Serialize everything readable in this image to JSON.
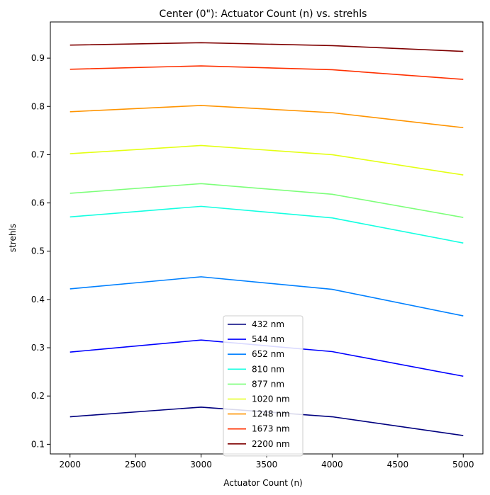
{
  "chart_data": {
    "type": "line",
    "title": "Center (0\"): Actuator Count (n) vs. strehls",
    "xlabel": "Actuator Count (n)",
    "ylabel": "strehls",
    "x": [
      2000,
      3000,
      4000,
      5000
    ],
    "xlim": [
      1850,
      5150
    ],
    "ylim": [
      0.08,
      0.975
    ],
    "xticks": [
      2000,
      2500,
      3000,
      3500,
      4000,
      4500,
      5000
    ],
    "yticks": [
      0.1,
      0.2,
      0.3,
      0.4,
      0.5,
      0.6,
      0.7,
      0.8,
      0.9
    ],
    "grid": false,
    "legend_position": "lower-center",
    "series": [
      {
        "name": "432 nm",
        "color": "#00007f",
        "values": [
          0.157,
          0.177,
          0.157,
          0.118
        ]
      },
      {
        "name": "544 nm",
        "color": "#0000ff",
        "values": [
          0.291,
          0.316,
          0.292,
          0.241
        ]
      },
      {
        "name": "652 nm",
        "color": "#0080ff",
        "values": [
          0.422,
          0.447,
          0.421,
          0.366
        ]
      },
      {
        "name": "810 nm",
        "color": "#15ffe1",
        "values": [
          0.571,
          0.593,
          0.569,
          0.517
        ]
      },
      {
        "name": "877 nm",
        "color": "#7dff7a",
        "values": [
          0.62,
          0.64,
          0.618,
          0.57
        ]
      },
      {
        "name": "1020 nm",
        "color": "#e4ff13",
        "values": [
          0.702,
          0.719,
          0.7,
          0.658
        ]
      },
      {
        "name": "1248 nm",
        "color": "#ff9400",
        "values": [
          0.789,
          0.802,
          0.787,
          0.756
        ]
      },
      {
        "name": "1673 nm",
        "color": "#ff3000",
        "values": [
          0.877,
          0.884,
          0.876,
          0.856
        ]
      },
      {
        "name": "2200 nm",
        "color": "#7f0000",
        "values": [
          0.927,
          0.932,
          0.926,
          0.914
        ]
      }
    ]
  }
}
